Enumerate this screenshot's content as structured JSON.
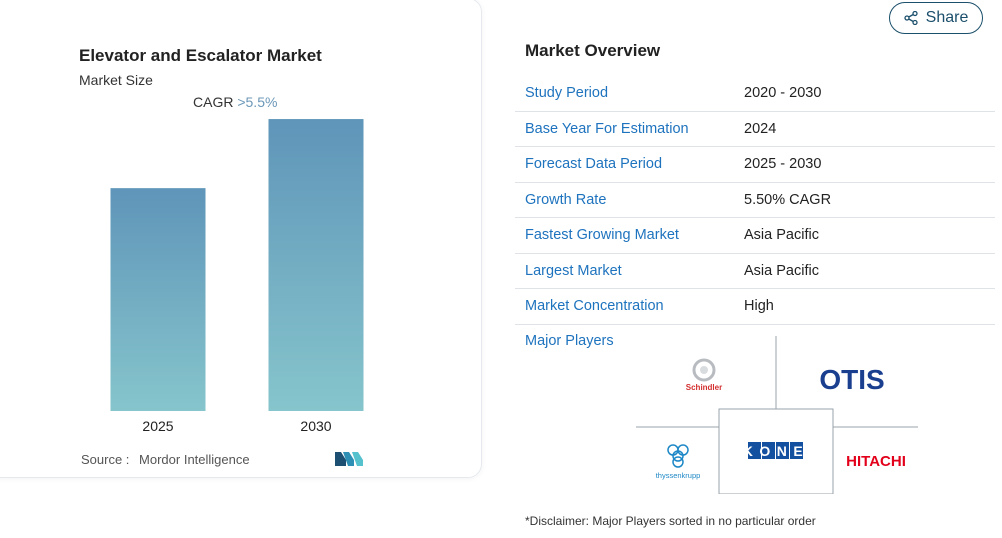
{
  "chart_card": {
    "title": "Elevator and Escalator Market",
    "subtitle": "Market Size",
    "cagr_label": "CAGR",
    "cagr_value": ">5.5%",
    "source_label": "Source :",
    "source_value": "Mordor Intelligence"
  },
  "chart_data": {
    "type": "bar",
    "title": "Elevator and Escalator Market",
    "categories": [
      "2025",
      "2030"
    ],
    "values": [
      1.0,
      1.31
    ],
    "note": "Relative bar heights; no y-axis values shown",
    "ylim": [
      0,
      1.4
    ],
    "colors": [
      "#5f95b9",
      "#86c5cc"
    ],
    "grid": false
  },
  "share": {
    "label": "Share"
  },
  "overview": {
    "title": "Market Overview",
    "rows": [
      {
        "key": "Study Period",
        "value": "2020 - 2030"
      },
      {
        "key": "Base Year For Estimation",
        "value": "2024"
      },
      {
        "key": "Forecast Data Period",
        "value": "2025 - 2030"
      },
      {
        "key": "Growth Rate",
        "value": "5.50% CAGR"
      },
      {
        "key": "Fastest Growing Market",
        "value": "Asia Pacific"
      },
      {
        "key": "Largest Market",
        "value": "Asia Pacific"
      },
      {
        "key": "Market Concentration",
        "value": "High"
      }
    ],
    "major_players_label": "Major Players",
    "players": {
      "schindler": "Schindler",
      "otis": "OTIS",
      "thyssenkrupp": "thyssenkrupp",
      "kone": "KONE",
      "hitachi": "HITACHI"
    }
  },
  "disclaimer": "*Disclaimer: Major Players sorted in no particular order"
}
